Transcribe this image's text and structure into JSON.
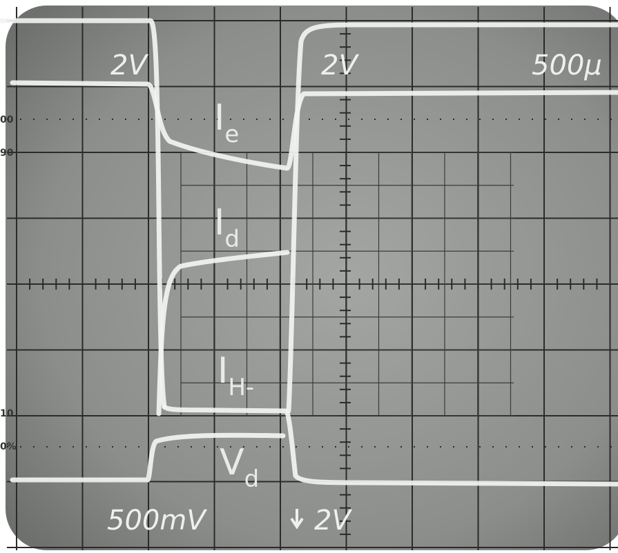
{
  "screen": {
    "labels": {
      "ch1_volts": "2V",
      "ch2_volts": "2V",
      "timebase": "500µ",
      "ch3_volts": "500mV",
      "ch4_volts": "2V"
    },
    "traces": [
      {
        "main": "I",
        "sub": "e"
      },
      {
        "main": "I",
        "sub": "d"
      },
      {
        "main": "I",
        "sub": "H-"
      },
      {
        "main": "V",
        "sub": "d"
      }
    ],
    "graticule": [
      "00",
      "90",
      "10",
      "0%"
    ]
  }
}
